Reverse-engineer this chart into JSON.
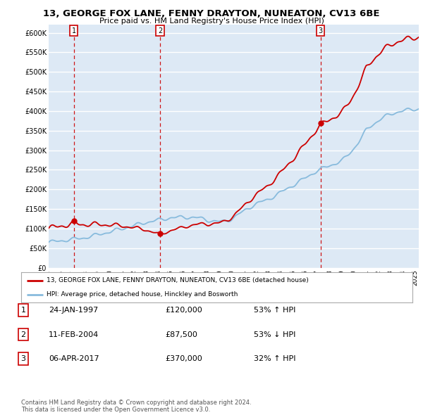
{
  "title": "13, GEORGE FOX LANE, FENNY DRAYTON, NUNEATON, CV13 6BE",
  "subtitle": "Price paid vs. HM Land Registry's House Price Index (HPI)",
  "ylim": [
    0,
    620000
  ],
  "yticks": [
    0,
    50000,
    100000,
    150000,
    200000,
    250000,
    300000,
    350000,
    400000,
    450000,
    500000,
    550000,
    600000
  ],
  "ytick_labels": [
    "£0",
    "£50K",
    "£100K",
    "£150K",
    "£200K",
    "£250K",
    "£300K",
    "£350K",
    "£400K",
    "£450K",
    "£500K",
    "£550K",
    "£600K"
  ],
  "background_color": "#dde9f5",
  "line_color_property": "#cc0000",
  "line_color_hpi": "#88bbdd",
  "sale_year_nums": [
    1997.07,
    2004.12,
    2017.27
  ],
  "sale_prices": [
    120000,
    87500,
    370000
  ],
  "sale_labels": [
    "1",
    "2",
    "3"
  ],
  "legend_property": "13, GEORGE FOX LANE, FENNY DRAYTON, NUNEATON, CV13 6BE (detached house)",
  "legend_hpi": "HPI: Average price, detached house, Hinckley and Bosworth",
  "table_rows": [
    {
      "label": "1",
      "date": "24-JAN-1997",
      "price": "£120,000",
      "change": "53% ↑ HPI"
    },
    {
      "label": "2",
      "date": "11-FEB-2004",
      "price": "£87,500",
      "change": "53% ↓ HPI"
    },
    {
      "label": "3",
      "date": "06-APR-2017",
      "price": "£370,000",
      "change": "32% ↑ HPI"
    }
  ],
  "footer": "Contains HM Land Registry data © Crown copyright and database right 2024.\nThis data is licensed under the Open Government Licence v3.0.",
  "xmin": 1995,
  "xmax": 2025.3
}
